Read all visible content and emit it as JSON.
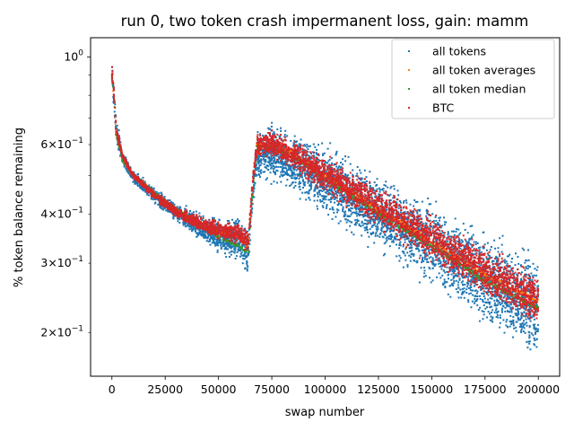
{
  "chart_data": {
    "type": "scatter",
    "title": "run 0, two token crash impermanent loss, gain: mamm",
    "xlabel": "swap number",
    "ylabel": "% token balance remaining",
    "xlim": [
      -10000,
      210000
    ],
    "ylim": [
      0.155,
      1.12
    ],
    "yscale": "log",
    "x_ticks": [
      0,
      25000,
      50000,
      75000,
      100000,
      125000,
      150000,
      175000,
      200000
    ],
    "x_tick_labels": [
      "0",
      "25000",
      "50000",
      "75000",
      "100000",
      "125000",
      "150000",
      "175000",
      "200000"
    ],
    "y_major_ticks": [
      1.0
    ],
    "y_major_labels": [
      "10^0"
    ],
    "y_minor_ticks": [
      0.2,
      0.3,
      0.4,
      0.6
    ],
    "y_minor_labels": [
      "2×10^−1",
      "3×10^−1",
      "4×10^−1",
      "6×10^−1"
    ],
    "y_unlabeled_minor_ticks": [
      0.5,
      0.7,
      0.8,
      0.9
    ],
    "legend": {
      "position": "upper right",
      "entries": [
        "all tokens",
        "all token averages",
        "all token median",
        "BTC"
      ]
    },
    "series": [
      {
        "name": "all tokens",
        "color": "#1f77b4",
        "envelope_x": [
          0,
          2000,
          5000,
          10000,
          20000,
          30000,
          40000,
          50000,
          60000,
          64000,
          66000,
          68000,
          75000,
          85000,
          100000,
          125000,
          150000,
          175000,
          200000
        ],
        "envelope_low": [
          0.8,
          0.6,
          0.53,
          0.47,
          0.42,
          0.38,
          0.34,
          0.31,
          0.29,
          0.27,
          0.4,
          0.47,
          0.47,
          0.44,
          0.38,
          0.31,
          0.25,
          0.2,
          0.155
        ],
        "envelope_high": [
          1.02,
          0.72,
          0.58,
          0.52,
          0.47,
          0.43,
          0.41,
          0.4,
          0.4,
          0.38,
          0.5,
          0.68,
          0.7,
          0.67,
          0.62,
          0.52,
          0.45,
          0.38,
          0.34
        ]
      },
      {
        "name": "all token averages",
        "color": "#ff7f0e",
        "trend_x": [
          0,
          2000,
          5000,
          10000,
          20000,
          30000,
          40000,
          50000,
          60000,
          64000,
          68000,
          75000,
          85000,
          100000,
          125000,
          150000,
          175000,
          200000
        ],
        "trend_y": [
          0.9,
          0.64,
          0.55,
          0.5,
          0.45,
          0.41,
          0.38,
          0.36,
          0.35,
          0.33,
          0.6,
          0.6,
          0.57,
          0.5,
          0.41,
          0.34,
          0.28,
          0.24
        ]
      },
      {
        "name": "all token median",
        "color": "#2ca02c",
        "trend_x": [
          0,
          2000,
          5000,
          10000,
          20000,
          30000,
          40000,
          50000,
          60000,
          64000,
          68000,
          75000,
          85000,
          100000,
          125000,
          150000,
          175000,
          200000
        ],
        "trend_y": [
          0.9,
          0.64,
          0.55,
          0.5,
          0.45,
          0.41,
          0.38,
          0.35,
          0.33,
          0.32,
          0.59,
          0.59,
          0.56,
          0.49,
          0.4,
          0.33,
          0.27,
          0.23
        ]
      },
      {
        "name": "BTC",
        "color": "#d62728",
        "envelope_x": [
          0,
          2000,
          5000,
          10000,
          20000,
          30000,
          40000,
          50000,
          60000,
          64000,
          66000,
          68000,
          75000,
          85000,
          100000,
          125000,
          150000,
          175000,
          200000
        ],
        "envelope_low": [
          0.85,
          0.63,
          0.55,
          0.49,
          0.43,
          0.39,
          0.36,
          0.34,
          0.33,
          0.31,
          0.45,
          0.55,
          0.55,
          0.51,
          0.44,
          0.36,
          0.29,
          0.24,
          0.2
        ],
        "envelope_high": [
          1.0,
          0.68,
          0.57,
          0.51,
          0.46,
          0.42,
          0.4,
          0.39,
          0.38,
          0.37,
          0.5,
          0.65,
          0.66,
          0.63,
          0.57,
          0.48,
          0.41,
          0.34,
          0.29
        ]
      }
    ]
  }
}
